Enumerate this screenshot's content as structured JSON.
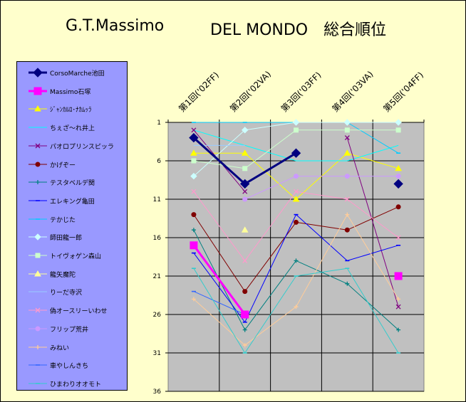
{
  "title_left": "G.T.Massimo",
  "title_right": "DEL MONDO　総合順位",
  "chart_data": {
    "type": "line",
    "categories": [
      "第1回('02FF)",
      "第2回('02VA)",
      "第3回('03FF)",
      "第4回('03VA)",
      "第5回('04FF)"
    ],
    "yticks": [
      1,
      6,
      11,
      16,
      21,
      26,
      31,
      36
    ],
    "ylim": [
      1,
      36
    ],
    "y_reversed": true,
    "plot_background": "#c0c0c0",
    "series": [
      {
        "name": "CorsoMarche池田",
        "color": "#000080",
        "marker": "diamond",
        "width": 3,
        "values": [
          3,
          9,
          5,
          null,
          9
        ]
      },
      {
        "name": "Massimo石塚",
        "color": "#ff00ff",
        "marker": "square",
        "width": 3,
        "values": [
          17,
          26,
          null,
          null,
          21
        ]
      },
      {
        "name": "ｼﾞｬﾝｶﾙﾛ･ﾅｶﾑｯﾗ",
        "color": "#ffff00",
        "marker": "triangle",
        "width": 1,
        "values": [
          5,
          5,
          11,
          5,
          7
        ]
      },
      {
        "name": "ちぇざ〜れ井上",
        "color": "#00ffff",
        "marker": "none",
        "width": 1,
        "values": [
          2,
          4,
          6,
          6,
          4
        ]
      },
      {
        "name": "パオロプリンスピッラ",
        "color": "#800080",
        "marker": "x",
        "width": 1,
        "values": [
          2,
          10,
          null,
          3,
          25
        ]
      },
      {
        "name": "かげぞー",
        "color": "#800000",
        "marker": "circle",
        "width": 1,
        "values": [
          13,
          23,
          14,
          15,
          12
        ]
      },
      {
        "name": "テスタベルデ関",
        "color": "#008080",
        "marker": "plus",
        "width": 1,
        "values": [
          15,
          28,
          19,
          22,
          28
        ]
      },
      {
        "name": "エレキング亀田",
        "color": "#0000ff",
        "marker": "dash",
        "width": 1,
        "values": [
          18,
          27,
          13,
          19,
          17
        ]
      },
      {
        "name": "テかじた",
        "color": "#00ccff",
        "marker": "dash",
        "width": 1,
        "values": [
          1,
          1,
          1,
          1,
          5
        ]
      },
      {
        "name": "師田龍一郎",
        "color": "#ccffff",
        "marker": "diamond",
        "width": 1,
        "values": [
          8,
          2,
          1,
          1,
          1
        ]
      },
      {
        "name": "トイヴォゲン森山",
        "color": "#ccffcc",
        "marker": "square",
        "width": 1,
        "values": [
          6,
          7,
          2,
          2,
          2
        ]
      },
      {
        "name": "龍矢魔陀",
        "color": "#ffff99",
        "marker": "triangle",
        "width": 1,
        "values": [
          null,
          15,
          null,
          null,
          null
        ]
      },
      {
        "name": "りーだ寺沢",
        "color": "#99ccff",
        "marker": "none",
        "width": 1,
        "values": [
          4,
          4,
          null,
          null,
          null
        ]
      },
      {
        "name": "偽オースリーいわせ",
        "color": "#ff99cc",
        "marker": "x",
        "width": 1,
        "values": [
          10,
          19,
          10,
          11,
          16
        ]
      },
      {
        "name": "フリップ荒井",
        "color": "#cc99ff",
        "marker": "circle",
        "width": 1,
        "values": [
          null,
          11,
          8,
          8,
          8
        ]
      },
      {
        "name": "みねい",
        "color": "#ffcc99",
        "marker": "plus",
        "width": 1,
        "values": [
          24,
          30,
          25,
          13,
          24
        ]
      },
      {
        "name": "車やしんきち",
        "color": "#3366ff",
        "marker": "dash",
        "width": 1,
        "values": [
          23,
          26,
          null,
          null,
          null
        ]
      },
      {
        "name": "ひまわりオオモト",
        "color": "#33cccc",
        "marker": "dash",
        "width": 1,
        "values": [
          20,
          31,
          21,
          20,
          31
        ]
      }
    ]
  }
}
